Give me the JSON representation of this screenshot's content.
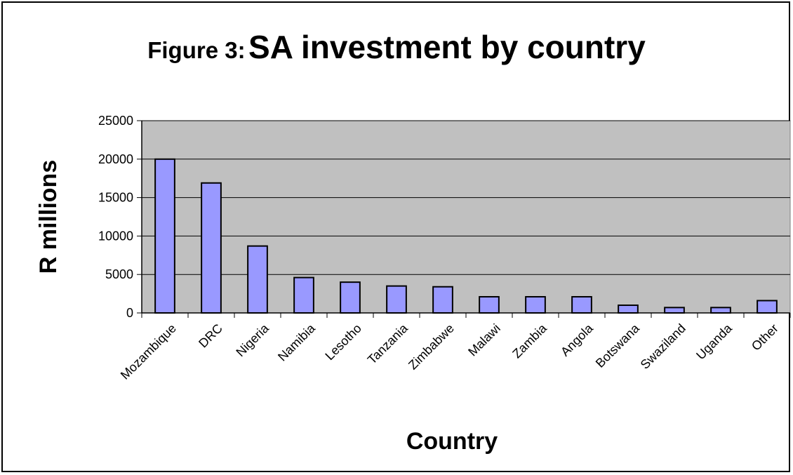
{
  "chart_data": {
    "type": "bar",
    "title_prefix": "Figure 3:",
    "title": "SA investment by country",
    "xlabel": "Country",
    "ylabel": "R millions",
    "categories": [
      "Mozambique",
      "DRC",
      "Nigeria",
      "Namibia",
      "Lesotho",
      "Tanzania",
      "Zimbabwe",
      "Malawi",
      "Zambia",
      "Angola",
      "Botswana",
      "Swaziland",
      "Uganda",
      "Other"
    ],
    "values": [
      20000,
      16900,
      8700,
      4600,
      4000,
      3500,
      3400,
      2100,
      2100,
      2100,
      1000,
      700,
      700,
      1600
    ],
    "ylim": [
      0,
      25000
    ],
    "yticks": [
      "0",
      "5000",
      "10000",
      "15000",
      "20000",
      "25000"
    ],
    "grid": true,
    "legend": "none",
    "colors": {
      "bar": "#9999ff",
      "plot_bg": "#c0c0c0",
      "edge": "#000000"
    }
  }
}
